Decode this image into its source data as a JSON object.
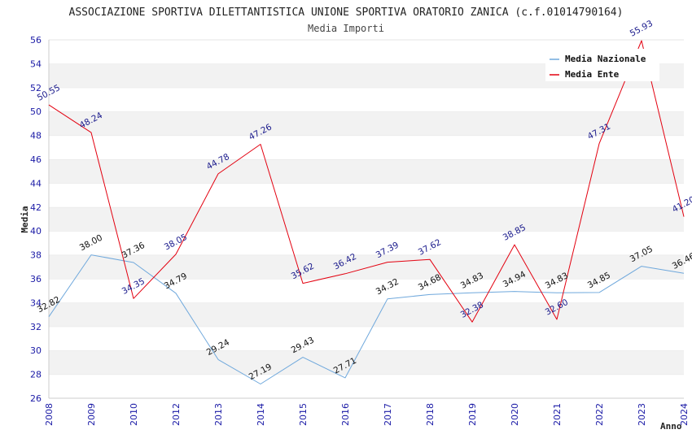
{
  "chart_data": {
    "type": "line",
    "title": "ASSOCIAZIONE SPORTIVA DILETTANTISTICA UNIONE SPORTIVA ORATORIO ZANICA (c.f.01014790164)",
    "subtitle": "Media Importi",
    "xlabel": "Anno",
    "ylabel": "Media",
    "ylim": [
      26,
      56
    ],
    "yticks": [
      "26",
      "28",
      "30",
      "32",
      "34",
      "36",
      "38",
      "40",
      "42",
      "44",
      "46",
      "48",
      "50",
      "52",
      "54",
      "56"
    ],
    "categories": [
      "2008",
      "2009",
      "2010",
      "2012",
      "2013",
      "2014",
      "2015",
      "2016",
      "2017",
      "2018",
      "2019",
      "2020",
      "2021",
      "2022",
      "2023",
      "2024"
    ],
    "series": [
      {
        "name": "Media Nazionale",
        "color": "#6fa8dc",
        "values": [
          32.82,
          38.0,
          37.36,
          34.79,
          29.24,
          27.19,
          29.43,
          27.71,
          34.32,
          34.68,
          34.83,
          34.94,
          34.83,
          34.85,
          37.05,
          36.46
        ],
        "labels": [
          "32.82",
          "38.00",
          "37.36",
          "34.79",
          "29.24",
          "27.19",
          "29.43",
          "27.71",
          "34.32",
          "34.68",
          "34.83",
          "34.94",
          "34.83",
          "34.85",
          "37.05",
          "36.46"
        ]
      },
      {
        "name": "Media Ente",
        "color": "#e3000f",
        "values": [
          50.55,
          48.24,
          34.35,
          38.05,
          44.78,
          47.26,
          35.62,
          36.42,
          37.39,
          37.62,
          32.38,
          38.85,
          32.6,
          47.31,
          55.93,
          41.2
        ],
        "labels": [
          "50.55",
          "48.24",
          "34.35",
          "38.05",
          "44.78",
          "47.26",
          "35.62",
          "36.42",
          "37.39",
          "37.62",
          "32.38",
          "38.85",
          "32.60",
          "47.31",
          "55.93",
          "41.20"
        ]
      }
    ],
    "legend": "top-right",
    "grid": "horizontal alternating bands"
  }
}
